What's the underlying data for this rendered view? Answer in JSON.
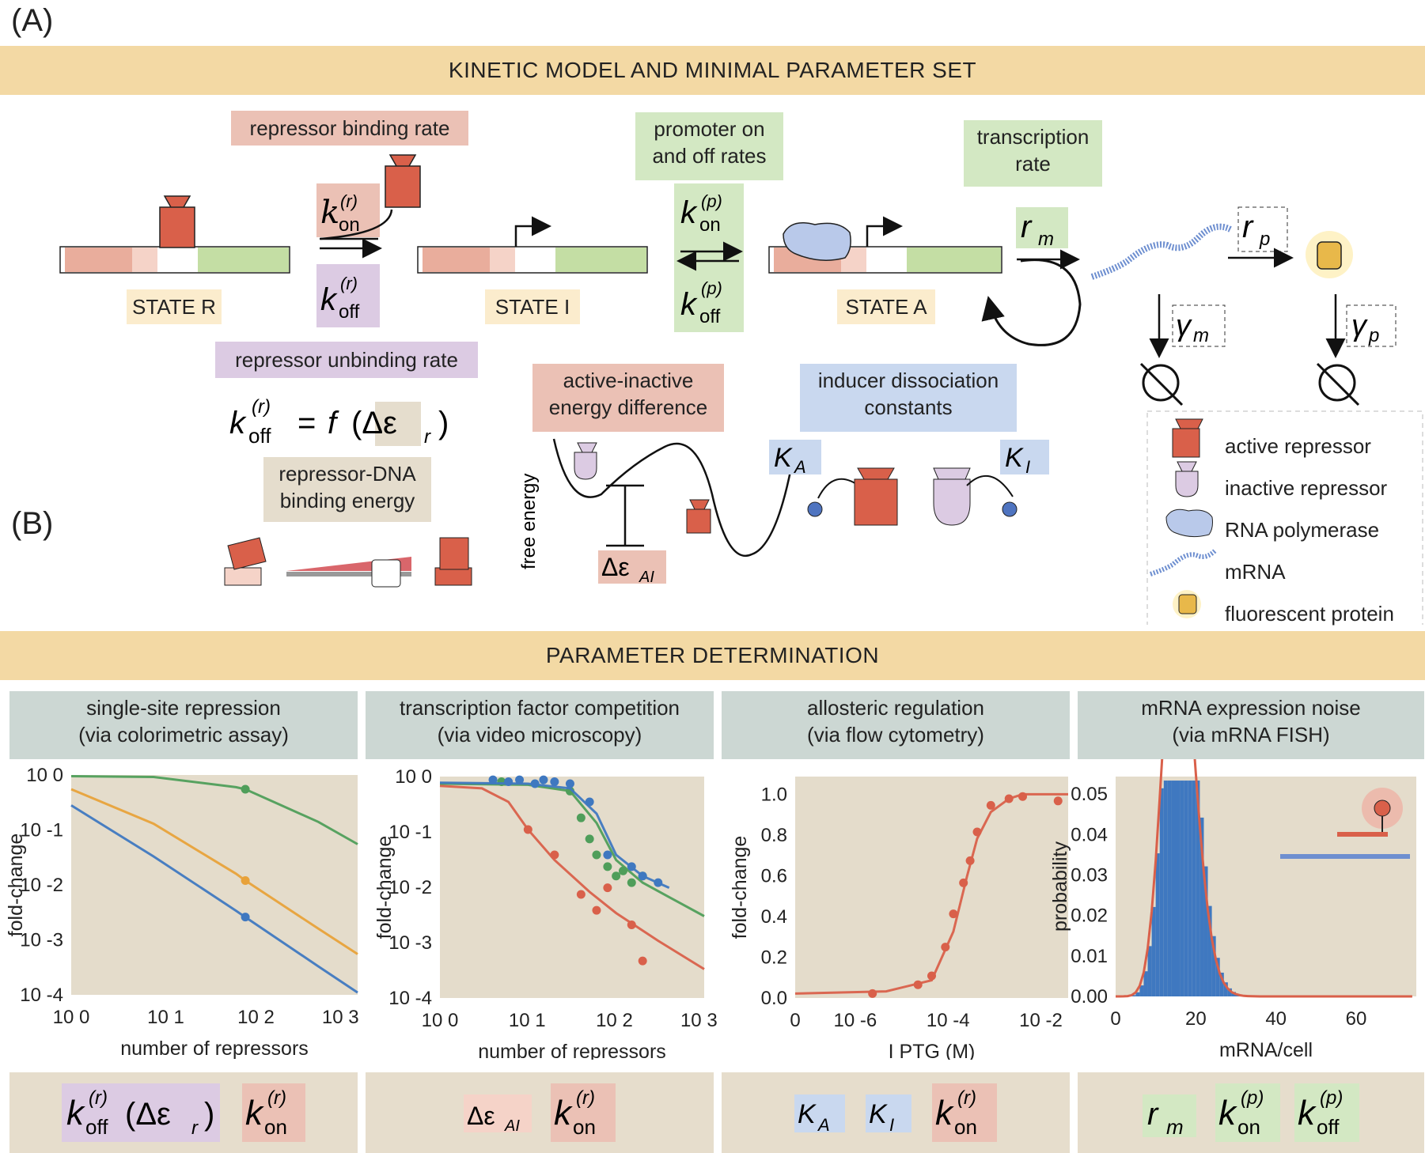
{
  "panels": {
    "a": "(A)",
    "b": "(B)"
  },
  "banner_a": "KINETIC MODEL AND MINIMAL PARAMETER SET",
  "banner_b": "PARAMETER DETERMINATION",
  "labels": {
    "repressor_binding_rate": "repressor binding rate",
    "promoter_rates_1": "promoter on",
    "promoter_rates_2": "and off rates",
    "transcription_rate_1": "transcription",
    "transcription_rate_2": "rate",
    "state_r": "STATE R",
    "state_i": "STATE I",
    "state_a": "STATE A",
    "repressor_unbinding_rate": "repressor unbinding rate",
    "binding_energy_1": "repressor-DNA",
    "binding_energy_2": "binding energy",
    "active_inactive_1": "active-inactive",
    "active_inactive_2": "energy difference",
    "inducer_1": "inducer dissociation",
    "inducer_2": "constants",
    "free_energy": "free energy"
  },
  "legend": [
    {
      "label": "active repressor",
      "icon": "active-repressor-icon"
    },
    {
      "label": "inactive repressor",
      "icon": "inactive-repressor-icon"
    },
    {
      "label": "RNA polymerase",
      "icon": "rna-polymerase-icon"
    },
    {
      "label": "mRNA",
      "icon": "mrna-icon"
    },
    {
      "label": "fluorescent protein",
      "icon": "fluorescent-protein-icon"
    }
  ],
  "sections": [
    {
      "title1": "single-site repression",
      "title2": "(via colorimetric assay)"
    },
    {
      "title1": "transcription factor competition",
      "title2": "(via video microscopy)"
    },
    {
      "title1": "allosteric regulation",
      "title2": "(via flow cytometry)"
    },
    {
      "title1": "mRNA expression noise",
      "title2": "(via mRNA FISH)"
    }
  ],
  "colors": {
    "red": "#d9604a",
    "green": "#4f9e5a",
    "orange": "#e8a23a",
    "blue": "#3f78c0",
    "banner": "#f3d9a4"
  },
  "chart_data": [
    {
      "type": "line",
      "xlabel": "number of repressors",
      "ylabel": "fold-change",
      "xscale": "log",
      "yscale": "log",
      "xlim": [
        1,
        3000
      ],
      "ylim": [
        0.0001,
        1
      ],
      "xticks": [
        "10 0",
        "10 1",
        "10 2",
        "10 3"
      ],
      "yticks": [
        "10 0",
        "10 -1",
        "10 -2",
        "10 -3",
        "10 -4"
      ],
      "series": [
        {
          "color": "#4f9e5a",
          "x": [
            1,
            10,
            100,
            130,
            1000,
            3000
          ],
          "y": [
            0.95,
            0.92,
            0.6,
            0.55,
            0.14,
            0.055
          ],
          "points": [
            [
              130,
              0.55
            ]
          ]
        },
        {
          "color": "#e8a23a",
          "x": [
            1,
            10,
            100,
            130,
            1000,
            3000
          ],
          "y": [
            0.55,
            0.13,
            0.016,
            0.012,
            0.0016,
            0.00055
          ],
          "points": [
            [
              130,
              0.012
            ]
          ]
        },
        {
          "color": "#3f78c0",
          "x": [
            1,
            10,
            100,
            130,
            1000,
            3000
          ],
          "y": [
            0.28,
            0.033,
            0.0034,
            0.0026,
            0.00033,
            0.00011
          ],
          "points": [
            [
              130,
              0.0026
            ]
          ]
        }
      ]
    },
    {
      "type": "line",
      "xlabel": "number of repressors",
      "ylabel": "fold-change",
      "xscale": "log",
      "yscale": "log",
      "xlim": [
        1,
        1000
      ],
      "ylim": [
        0.0001,
        1.5
      ],
      "xticks": [
        "10 0",
        "10 1",
        "10 2",
        "10 3"
      ],
      "yticks": [
        "10 0",
        "10 -1",
        "10 -2",
        "10 -3",
        "10 -4"
      ],
      "series": [
        {
          "color": "#d9604a",
          "x": [
            1,
            3,
            6,
            10,
            20,
            50,
            100,
            300,
            1000
          ],
          "y": [
            1,
            0.9,
            0.5,
            0.15,
            0.04,
            0.01,
            0.004,
            0.0012,
            0.00035
          ],
          "points": [
            [
              10,
              0.15
            ],
            [
              20,
              0.05
            ],
            [
              40,
              0.009
            ],
            [
              60,
              0.0045
            ],
            [
              150,
              0.0024
            ],
            [
              80,
              0.012
            ],
            [
              200,
              0.0005
            ]
          ]
        },
        {
          "color": "#4f9e5a",
          "x": [
            1,
            10,
            30,
            60,
            100,
            200,
            400,
            1000
          ],
          "y": [
            1.1,
            1.05,
            0.8,
            0.2,
            0.04,
            0.015,
            0.008,
            0.0035
          ],
          "points": [
            [
              5,
              1.2
            ],
            [
              30,
              0.8
            ],
            [
              40,
              0.25
            ],
            [
              50,
              0.1
            ],
            [
              60,
              0.05
            ],
            [
              80,
              0.03
            ],
            [
              100,
              0.02
            ],
            [
              120,
              0.025
            ],
            [
              150,
              0.015
            ],
            [
              200,
              0.02
            ]
          ]
        },
        {
          "color": "#3f78c0",
          "x": [
            1,
            10,
            30,
            60,
            100,
            200,
            400
          ],
          "y": [
            1.15,
            1.1,
            0.9,
            0.3,
            0.05,
            0.02,
            0.012
          ],
          "points": [
            [
              4,
              1.3
            ],
            [
              6,
              1.2
            ],
            [
              8,
              1.3
            ],
            [
              12,
              1.1
            ],
            [
              15,
              1.3
            ],
            [
              20,
              1.2
            ],
            [
              30,
              1.1
            ],
            [
              50,
              0.5
            ],
            [
              80,
              0.05
            ],
            [
              150,
              0.03
            ],
            [
              200,
              0.02
            ],
            [
              300,
              0.015
            ]
          ]
        }
      ]
    },
    {
      "type": "line",
      "xlabel": "I PTG  (M)",
      "ylabel": "fold-change",
      "xscale": "log",
      "yscale": "linear",
      "xlim": [
        1e-08,
        0.01
      ],
      "ylim": [
        0,
        1
      ],
      "xticks": [
        "0",
        "10 -6",
        "10 -4",
        "10 -2"
      ],
      "yticks": [
        "0.0",
        "0.2",
        "0.4",
        "0.6",
        "0.8",
        "1.0"
      ],
      "series": [
        {
          "color": "#d9604a",
          "x": [
            1e-08,
            1e-06,
            1e-05,
            3e-05,
            6e-05,
            0.0001,
            0.0002,
            0.0005,
            0.001,
            0.005,
            0.01
          ],
          "y": [
            0.02,
            0.03,
            0.08,
            0.3,
            0.55,
            0.72,
            0.84,
            0.9,
            0.92,
            0.92,
            0.92
          ],
          "points": [
            [
              5e-07,
              0.02
            ],
            [
              5e-06,
              0.06
            ],
            [
              1e-05,
              0.1
            ],
            [
              2e-05,
              0.23
            ],
            [
              3e-05,
              0.38
            ],
            [
              5e-05,
              0.52
            ],
            [
              7e-05,
              0.62
            ],
            [
              0.0001,
              0.75
            ],
            [
              0.0002,
              0.87
            ],
            [
              0.0005,
              0.9
            ],
            [
              0.001,
              0.91
            ],
            [
              0.006,
              0.89
            ]
          ]
        }
      ]
    },
    {
      "type": "bar",
      "xlabel": "mRNA/cell",
      "ylabel": "probability",
      "xlim": [
        0,
        75
      ],
      "ylim": [
        0,
        0.055
      ],
      "xticks": [
        "0",
        "20",
        "40",
        "60"
      ],
      "yticks": [
        "0.00",
        "0.01",
        "0.02",
        "0.03",
        "0.04",
        "0.05"
      ],
      "mean": 16,
      "histogram_color": "#3f78c0",
      "fit_color": "#d9604a"
    }
  ],
  "bottom_params": [
    [
      "k_off^(r)(Δε_r)",
      "k_on^(r)"
    ],
    [
      "Δε_AI",
      "k_on^(r)"
    ],
    [
      "K_A",
      "K_I",
      "k_on^(r)"
    ],
    [
      "r_m",
      "k_on^(p)",
      "k_off^(p)"
    ]
  ]
}
